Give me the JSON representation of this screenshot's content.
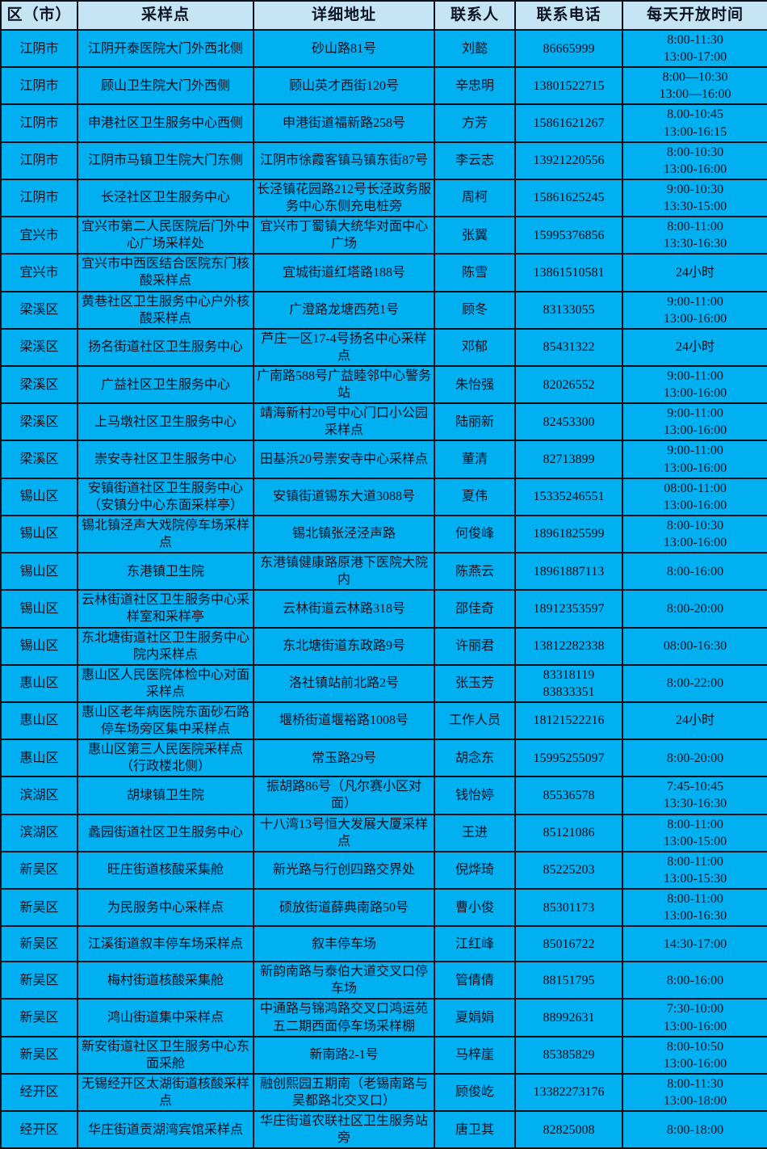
{
  "colors": {
    "header_bg": "#c6e5f4",
    "cell_bg": "#00b0f0",
    "border": "#0e1018",
    "text": "#0c1324"
  },
  "table": {
    "columns": [
      {
        "key": "district",
        "label": "区（市）"
      },
      {
        "key": "site",
        "label": "采样点"
      },
      {
        "key": "address",
        "label": "详细地址"
      },
      {
        "key": "contact",
        "label": "联系人"
      },
      {
        "key": "phone",
        "label": "联系电话"
      },
      {
        "key": "hours",
        "label": "每天开放时间"
      }
    ],
    "rows": [
      {
        "district": "江阴市",
        "site": "江阴开泰医院大门外西北侧",
        "address": "砂山路81号",
        "contact": "刘懿",
        "phone": "86665999",
        "hours": "8:00-11:30\n13:00-17:00"
      },
      {
        "district": "江阴市",
        "site": "顾山卫生院大门外西侧",
        "address": "顾山英才西街120号",
        "contact": "辛忠明",
        "phone": "13801522715",
        "hours": "8:00—10:30\n13:00—16:00"
      },
      {
        "district": "江阴市",
        "site": "申港社区卫生服务中心西侧",
        "address": "申港街道福新路258号",
        "contact": "方芳",
        "phone": "15861621267",
        "hours": "8.00-10:45\n13:00-16:15"
      },
      {
        "district": "江阴市",
        "site": "江阴市马镇卫生院大门东侧",
        "address": "江阴市徐霞客镇马镇东街87号",
        "contact": "李云志",
        "phone": "13921220556",
        "hours": "8:00-10:30\n13:00-16:00"
      },
      {
        "district": "江阴市",
        "site": "长泾社区卫生服务中心",
        "address": "长泾镇花园路212号长泾政务服务中心东侧充电桩旁",
        "contact": "周柯",
        "phone": "15861625245",
        "hours": "9:00-10:30\n13:30-15:00"
      },
      {
        "district": "宜兴市",
        "site": "宜兴市第二人民医院后门外中心广场采样处",
        "address": "宜兴市丁蜀镇大统华对面中心广场",
        "contact": "张翼",
        "phone": "15995376856",
        "hours": "8:00-11:00\n13:30-16:30"
      },
      {
        "district": "宜兴市",
        "site": "宜兴市中西医结合医院东门核酸采样点",
        "address": "宜城街道红塔路188号",
        "contact": "陈雪",
        "phone": "13861510581",
        "hours": "24小时"
      },
      {
        "district": "梁溪区",
        "site": "黄巷社区卫生服务中心户外核酸采样点",
        "address": "广澄路龙塘西苑1号",
        "contact": "顾冬",
        "phone": "83133055",
        "hours": "9:00-11:00\n13:00-16:00"
      },
      {
        "district": "梁溪区",
        "site": "扬名街道社区卫生服务中心",
        "address": "芦庄一区17-4号扬名中心采样点",
        "contact": "邓郁",
        "phone": "85431322",
        "hours": "24小时"
      },
      {
        "district": "梁溪区",
        "site": "广益社区卫生服务中心",
        "address": "广南路588号广益睦邻中心警务站",
        "contact": "朱怡强",
        "phone": "82026552",
        "hours": "9:00-11:00\n13:00-16:00"
      },
      {
        "district": "梁溪区",
        "site": "上马墩社区卫生服务中心",
        "address": "靖海新村20号中心门口小公园采样点",
        "contact": "陆丽新",
        "phone": "82453300",
        "hours": "9:00-11:00\n13:00-16:00"
      },
      {
        "district": "梁溪区",
        "site": "崇安寺社区卫生服务中心",
        "address": "田基浜20号崇安寺中心采样点",
        "contact": "董清",
        "phone": "82713899",
        "hours": "9:00-11:00\n13:00-16:00"
      },
      {
        "district": "锡山区",
        "site": "安镇街道社区卫生服务中心（安镇分中心东面采样亭）",
        "address": "安镇街道锡东大道3088号",
        "contact": "夏伟",
        "phone": "15335246551",
        "hours": "08:00-11:00\n13:00-16:00"
      },
      {
        "district": "锡山区",
        "site": "锡北镇泾声大戏院停车场采样点",
        "address": "锡北镇张泾泾声路",
        "contact": "何俊峰",
        "phone": "18961825599",
        "hours": "8:00-10:30\n13:00-16:00"
      },
      {
        "district": "锡山区",
        "site": "东港镇卫生院",
        "address": "东港镇健康路原港下医院大院内",
        "contact": "陈燕云",
        "phone": "18961887113",
        "hours": "8:00-16:00"
      },
      {
        "district": "锡山区",
        "site": "云林街道社区卫生服务中心采样室和采样亭",
        "address": "云林街道云林路318号",
        "contact": "邵佳奇",
        "phone": "18912353597",
        "hours": "8:00-20:00"
      },
      {
        "district": "锡山区",
        "site": "东北塘街道社区卫生服务中心院内采样点",
        "address": "东北塘街道东政路9号",
        "contact": "许丽君",
        "phone": "13812282338",
        "hours": "08:00-16:30"
      },
      {
        "district": "惠山区",
        "site": "惠山区人民医院体检中心对面采样点",
        "address": "洛社镇站前北路2号",
        "contact": "张玉芳",
        "phone": "83318119\n83833351",
        "hours": "8:00-22:00"
      },
      {
        "district": "惠山区",
        "site": "惠山区老年病医院东面砂石路停车场旁区集中采样点",
        "address": "堰桥街道堰裕路1008号",
        "contact": "工作人员",
        "phone": "18121522216",
        "hours": "24小时"
      },
      {
        "district": "惠山区",
        "site": "惠山区第三人民医院采样点（行政楼北侧）",
        "address": "常玉路29号",
        "contact": "胡念东",
        "phone": "15995255097",
        "hours": "8:00-20:00"
      },
      {
        "district": "滨湖区",
        "site": "胡埭镇卫生院",
        "address": "振胡路86号（凡尔赛小区对面）",
        "contact": "钱怡婷",
        "phone": "85536578",
        "hours": "7:45-10:45\n13:30-16:30"
      },
      {
        "district": "滨湖区",
        "site": "蠡园街道社区卫生服务中心",
        "address": "十八湾13号恒大发展大厦采样点",
        "contact": "王进",
        "phone": "85121086",
        "hours": "8:00-11:00\n13:00-15:00"
      },
      {
        "district": "新吴区",
        "site": "旺庄街道核酸采集舱",
        "address": "新光路与行创四路交界处",
        "contact": "倪烨琦",
        "phone": "85225203",
        "hours": "8:00-11:00\n13:00-15:30"
      },
      {
        "district": "新吴区",
        "site": "为民服务中心采样点",
        "address": "硕放街道薛典南路50号",
        "contact": "曹小俊",
        "phone": "85301173",
        "hours": "8:00-11:00\n13:00-16:30"
      },
      {
        "district": "新吴区",
        "site": "江溪街道叙丰停车场采样点",
        "address": "叙丰停车场",
        "contact": "江红峰",
        "phone": "85016722",
        "hours": "14:30-17:00"
      },
      {
        "district": "新吴区",
        "site": "梅村街道核酸采集舱",
        "address": "新韵南路与泰伯大道交叉口停车场",
        "contact": "管倩倩",
        "phone": "88151795",
        "hours": "8:00-16:00"
      },
      {
        "district": "新吴区",
        "site": "鸿山街道集中采样点",
        "address": "中通路与锦鸿路交叉口鸿运苑五二期西面停车场采样棚",
        "contact": "夏娟娟",
        "phone": "88992631",
        "hours": "7:30-10:00\n13:00-16:00"
      },
      {
        "district": "新吴区",
        "site": "新安街道社区卫生服务中心东面采舱",
        "address": "新南路2-1号",
        "contact": "马梓崖",
        "phone": "85385829",
        "hours": "8:00-10:50\n13:00-16:00"
      },
      {
        "district": "经开区",
        "site": "无锡经开区太湖街道核酸采样点",
        "address": "融创熙园五期南（老锡南路与吴都路北交叉口）",
        "contact": "顾俊屹",
        "phone": "13382273176",
        "hours": "8:00-11:30\n13:00-18:00"
      },
      {
        "district": "经开区",
        "site": "华庄街道贡湖湾宾馆采样点",
        "address": "华庄街道农联社区卫生服务站旁",
        "contact": "唐卫其",
        "phone": "82825008",
        "hours": "8:00-18:00"
      }
    ]
  }
}
